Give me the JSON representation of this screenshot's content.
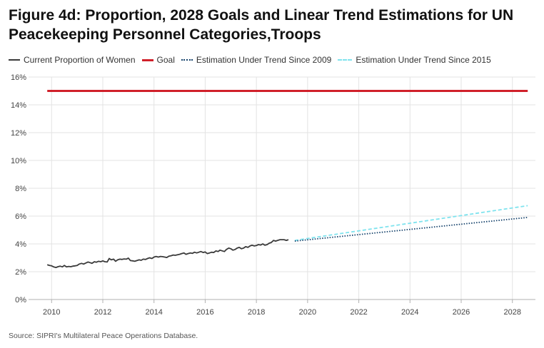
{
  "title": "Figure 4d: Proportion, 2028 Goals and Linear Trend Estimations for UN Peacekeeping Personnel Categories,Troops",
  "source": "Source: SIPRI's Multilateral Peace Operations Database.",
  "colors": {
    "current": "#3a3a3a",
    "goal": "#d0202a",
    "trend2009": "#14416b",
    "trend2015": "#7fe3ee",
    "grid": "#e3e3e3",
    "axis": "#b0b0b0"
  },
  "chart_data": {
    "type": "line",
    "title": "Figure 4d: Proportion, 2028 Goals and Linear Trend Estimations for UN Peacekeeping Personnel Categories,Troops",
    "xlabel": "",
    "ylabel": "",
    "xlim": [
      2009.1,
      2028.9
    ],
    "ylim": [
      0,
      16
    ],
    "x_ticks": [
      2010,
      2012,
      2014,
      2016,
      2018,
      2020,
      2022,
      2024,
      2026,
      2028
    ],
    "y_ticks": [
      0,
      2,
      4,
      6,
      8,
      10,
      12,
      14,
      16
    ],
    "y_tick_labels": [
      "0%",
      "2%",
      "4%",
      "6%",
      "8%",
      "10%",
      "12%",
      "14%",
      "16%"
    ],
    "grid": true,
    "legend_position": "top-left",
    "series": [
      {
        "name": "Current Proportion of Women",
        "style": "solid",
        "x": [
          2009.83,
          2009.92,
          2010.0,
          2010.08,
          2010.17,
          2010.25,
          2010.33,
          2010.42,
          2010.5,
          2010.58,
          2010.67,
          2010.75,
          2010.83,
          2010.92,
          2011.0,
          2011.08,
          2011.17,
          2011.25,
          2011.33,
          2011.42,
          2011.5,
          2011.58,
          2011.67,
          2011.75,
          2011.83,
          2011.92,
          2012.0,
          2012.08,
          2012.17,
          2012.25,
          2012.33,
          2012.42,
          2012.5,
          2012.58,
          2012.67,
          2012.75,
          2012.83,
          2012.92,
          2013.0,
          2013.08,
          2013.17,
          2013.25,
          2013.33,
          2013.42,
          2013.5,
          2013.58,
          2013.67,
          2013.75,
          2013.83,
          2013.92,
          2014.0,
          2014.08,
          2014.17,
          2014.25,
          2014.33,
          2014.42,
          2014.5,
          2014.58,
          2014.67,
          2014.75,
          2014.83,
          2014.92,
          2015.0,
          2015.08,
          2015.17,
          2015.25,
          2015.33,
          2015.42,
          2015.5,
          2015.58,
          2015.67,
          2015.75,
          2015.83,
          2015.92,
          2016.0,
          2016.08,
          2016.17,
          2016.25,
          2016.33,
          2016.42,
          2016.5,
          2016.58,
          2016.67,
          2016.75,
          2016.83,
          2016.92,
          2017.0,
          2017.08,
          2017.17,
          2017.25,
          2017.33,
          2017.42,
          2017.5,
          2017.58,
          2017.67,
          2017.75,
          2017.83,
          2017.92,
          2018.0,
          2018.08,
          2018.17,
          2018.25,
          2018.33,
          2018.42,
          2018.5,
          2018.58,
          2018.67,
          2018.75,
          2018.83,
          2018.92,
          2019.0,
          2019.08,
          2019.17,
          2019.25
        ],
        "values": [
          2.5,
          2.45,
          2.42,
          2.35,
          2.3,
          2.36,
          2.4,
          2.35,
          2.45,
          2.35,
          2.38,
          2.36,
          2.4,
          2.42,
          2.45,
          2.55,
          2.6,
          2.55,
          2.62,
          2.7,
          2.65,
          2.6,
          2.72,
          2.68,
          2.75,
          2.72,
          2.78,
          2.72,
          2.7,
          2.95,
          2.85,
          2.9,
          2.75,
          2.85,
          2.9,
          2.88,
          2.92,
          2.9,
          2.98,
          2.8,
          2.78,
          2.75,
          2.8,
          2.85,
          2.82,
          2.9,
          2.88,
          2.95,
          3.0,
          2.95,
          3.05,
          3.1,
          3.05,
          3.1,
          3.08,
          3.05,
          3.02,
          3.12,
          3.15,
          3.2,
          3.18,
          3.22,
          3.25,
          3.3,
          3.35,
          3.25,
          3.3,
          3.35,
          3.32,
          3.4,
          3.35,
          3.4,
          3.45,
          3.38,
          3.42,
          3.3,
          3.35,
          3.4,
          3.38,
          3.5,
          3.45,
          3.55,
          3.5,
          3.45,
          3.6,
          3.7,
          3.65,
          3.55,
          3.6,
          3.7,
          3.75,
          3.65,
          3.7,
          3.8,
          3.75,
          3.85,
          3.9,
          3.85,
          3.88,
          3.95,
          3.92,
          4.0,
          3.9,
          3.95,
          4.05,
          4.1,
          4.25,
          4.2,
          4.25,
          4.3,
          4.3,
          4.3,
          4.25,
          4.3
        ]
      },
      {
        "name": "Goal",
        "style": "solid",
        "x": [
          2009.83,
          2028.6
        ],
        "values": [
          15,
          15
        ]
      },
      {
        "name": "Estimation Under Trend Since 2009",
        "style": "dotted",
        "x": [
          2019.5,
          2028.6
        ],
        "values": [
          4.2,
          5.9
        ]
      },
      {
        "name": "Estimation Under Trend Since 2015",
        "style": "dashed",
        "x": [
          2019.5,
          2028.6
        ],
        "values": [
          4.25,
          6.75
        ]
      }
    ]
  }
}
